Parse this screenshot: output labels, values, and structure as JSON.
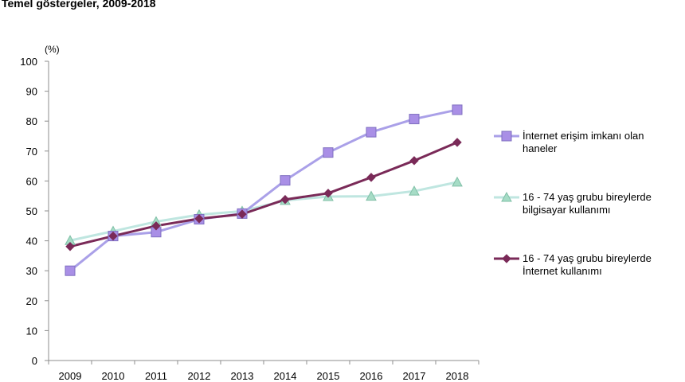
{
  "title": "Temel göstergeler, 2009-2018",
  "chart_data": {
    "type": "line",
    "unit_label": "(%)",
    "categories": [
      "2009",
      "2010",
      "2011",
      "2012",
      "2013",
      "2014",
      "2015",
      "2016",
      "2017",
      "2018"
    ],
    "ylim": [
      0,
      100
    ],
    "yticks": [
      0,
      10,
      20,
      30,
      40,
      50,
      60,
      70,
      80,
      90,
      100
    ],
    "grid": false,
    "legend_position": "right",
    "series": [
      {
        "name": "İnternet erişim imkanı olan haneler",
        "name_lines": [
          "İnternet erişim imkanı olan",
          "haneler"
        ],
        "color": "#aaa0e8",
        "marker": "square",
        "marker_color": "#a98fe6",
        "values": [
          30,
          41.6,
          42.9,
          47.2,
          49.1,
          60.2,
          69.5,
          76.3,
          80.7,
          83.8
        ]
      },
      {
        "name": "16 - 74 yaş grubu bireylerde bilgisayar kullanımı",
        "name_lines": [
          "16 - 74 yaş grubu bireylerde",
          "bilgisayar kullanımı"
        ],
        "color": "#bfe6e0",
        "marker": "triangle",
        "marker_color": "#a6dcc6",
        "values": [
          40.1,
          43.2,
          46.4,
          48.7,
          49.9,
          53.5,
          54.8,
          54.9,
          56.6,
          59.6
        ]
      },
      {
        "name": "16 - 74 yaş grubu bireylerde İnternet kullanımı",
        "name_lines": [
          "16 - 74 yaş grubu bireylerde",
          "İnternet kullanımı"
        ],
        "color": "#7a2a58",
        "marker": "diamond",
        "marker_color": "#7a2a58",
        "values": [
          38.1,
          41.6,
          45.0,
          47.4,
          48.9,
          53.8,
          55.9,
          61.2,
          66.8,
          72.9
        ]
      }
    ]
  }
}
